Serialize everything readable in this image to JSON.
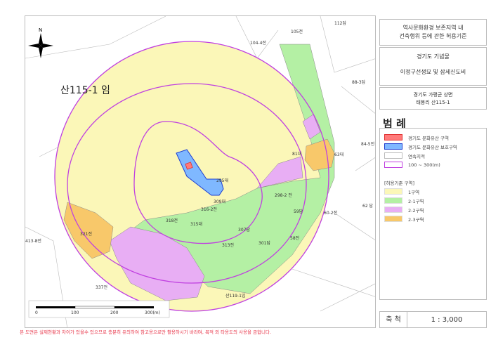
{
  "title_box": {
    "line1": "역사문화환경 보존지역 내",
    "line2": "건축행위 등에 관한 허용기준"
  },
  "heritage_box": {
    "line1": "경기도 기념물",
    "line2": "이정구선생묘 및 삼세신도비"
  },
  "location_box": {
    "line1": "경기도 가평군 상면",
    "line2": "태봉리 산115-1"
  },
  "legend": {
    "title": "범 례",
    "items": [
      {
        "label": "경기도 문화유산 구역",
        "color": "#ff7a7a",
        "border": "#e03030"
      },
      {
        "label": "경기도 문화유산 보호구역",
        "color": "#7fb8ff",
        "border": "#1f3fd0"
      },
      {
        "label": "연속지적",
        "color": "#ffffff",
        "border": "#bbbbbb"
      },
      {
        "label": "100 ~ 300(m)",
        "color": "#ffffff",
        "border": "#c040e0"
      }
    ],
    "zone_heading": "[허용기준 구역]",
    "zones": [
      {
        "label": "1구역",
        "color": "#fbf7b8"
      },
      {
        "label": "2-1구역",
        "color": "#b4f0a4"
      },
      {
        "label": "2-2구역",
        "color": "#e8aef4"
      },
      {
        "label": "2-3구역",
        "color": "#f8c86a"
      }
    ]
  },
  "scale": {
    "label": "축 척",
    "value": "1 : 3,000"
  },
  "scalebar": {
    "ticks": [
      "0",
      "100",
      "200",
      "300(m)"
    ]
  },
  "north": "N",
  "map_labels": [
    "산115-1 임",
    "295대",
    "309대",
    "307답",
    "301답",
    "58전",
    "59답",
    "298-2 전",
    "315대",
    "318전",
    "321전",
    "62 답",
    "산119-1임",
    "337전",
    "63대",
    "81대",
    "105전",
    "104-4전",
    "88-3답",
    "84-5전",
    "112답",
    "313전",
    "316-2전",
    "60-2전",
    "413-8전"
  ],
  "notice": "본 도면은 실제현황과 차이가 있을수 있으므로 충분히 유의하여 참고용으로만 활용하시기 바라며, 목적 외 타용도의 사용을 금합니다."
}
